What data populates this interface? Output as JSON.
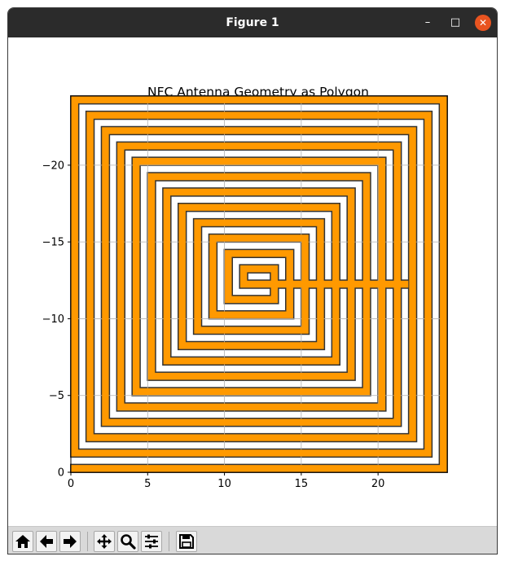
{
  "window": {
    "title": "Figure 1",
    "minimize_glyph": "–",
    "maximize_glyph": "□",
    "close_glyph": "✕"
  },
  "toolbar": {
    "buttons": [
      {
        "name": "home-icon"
      },
      {
        "name": "back-arrow-icon"
      },
      {
        "name": "forward-arrow-icon"
      },
      {
        "name": "pan-icon"
      },
      {
        "name": "zoom-icon"
      },
      {
        "name": "configure-subplots-icon"
      },
      {
        "name": "save-icon"
      }
    ]
  },
  "chart_data": {
    "type": "polygon",
    "title": "NFC Antenna Geometry as Polygon",
    "xlabel": "",
    "ylabel": "",
    "xlim": [
      0,
      24.5
    ],
    "ylim": [
      0,
      24.5
    ],
    "y_axis_inverted": true,
    "x_ticks": [
      "0",
      "5",
      "10",
      "15",
      "20"
    ],
    "x_tick_values": [
      0,
      5,
      10,
      15,
      20
    ],
    "y_ticks": [
      "0",
      "−5",
      "−10",
      "−15",
      "−20"
    ],
    "y_tick_values": [
      0,
      5,
      10,
      15,
      20
    ],
    "grid": true,
    "fill_color": "#ff9900",
    "edge_color": "#333333",
    "spiral": {
      "turns": 16,
      "outer_size": 24.5,
      "trace_width": 0.5,
      "pitch": 0.5,
      "gap": 0.5
    }
  }
}
